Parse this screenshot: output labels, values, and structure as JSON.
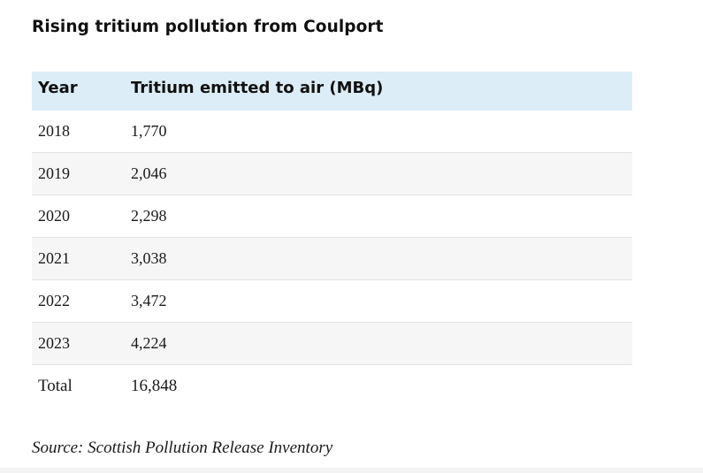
{
  "title": "Rising tritium pollution from Coulport",
  "table": {
    "headers": {
      "year": "Year",
      "value": "Tritium emitted to air (MBq)"
    },
    "rows": [
      {
        "year": "2018",
        "value": "1,770"
      },
      {
        "year": "2019",
        "value": "2,046"
      },
      {
        "year": "2020",
        "value": "2,298"
      },
      {
        "year": "2021",
        "value": "3,038"
      },
      {
        "year": "2022",
        "value": "3,472"
      },
      {
        "year": "2023",
        "value": "4,224"
      },
      {
        "year": "Total",
        "value": "16,848"
      }
    ],
    "colors": {
      "header_bg": "#dcedf7",
      "alt_row_bg": "#f6f6f6",
      "divider": "#e2e2e2"
    }
  },
  "source": "Source: Scottish Pollution Release Inventory"
}
